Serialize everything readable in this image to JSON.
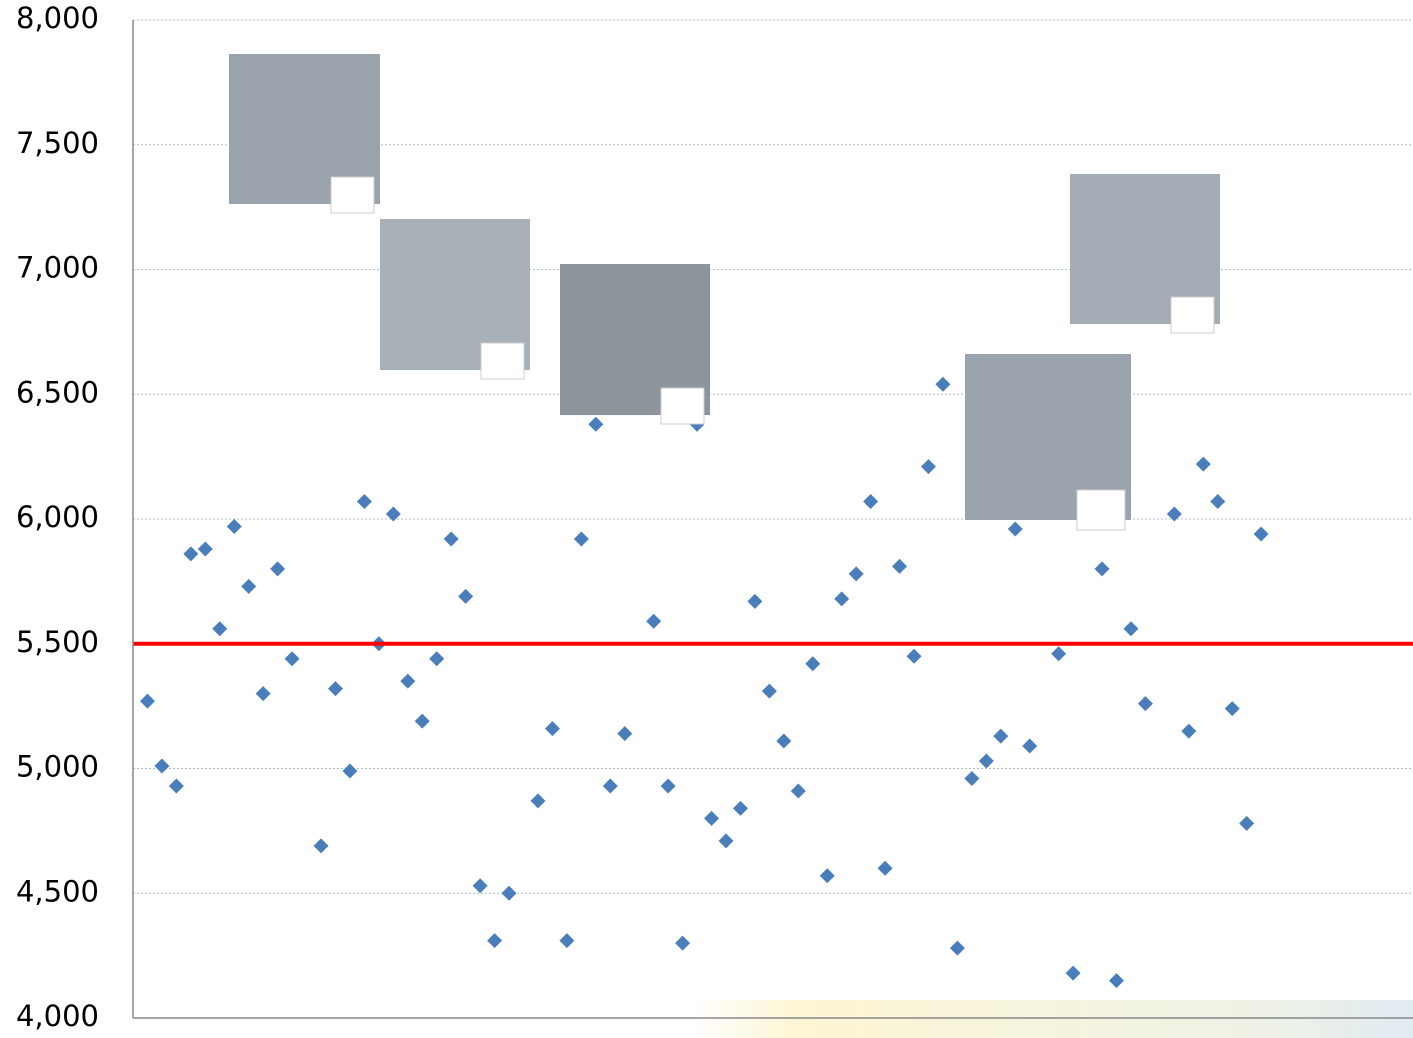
{
  "chart_data": {
    "type": "scatter",
    "xlim": [
      0,
      88.5
    ],
    "ylim": [
      4000,
      8000
    ],
    "yticks": [
      {
        "value": 4000,
        "label": "4,000"
      },
      {
        "value": 4500,
        "label": "4,500"
      },
      {
        "value": 5000,
        "label": "5,000"
      },
      {
        "value": 5500,
        "label": "5,500"
      },
      {
        "value": 6000,
        "label": "6,000"
      },
      {
        "value": 6500,
        "label": "6,500"
      },
      {
        "value": 7000,
        "label": "7,000"
      },
      {
        "value": 7500,
        "label": "7,500"
      },
      {
        "value": 8000,
        "label": "8,000"
      }
    ],
    "grid": true,
    "reference_line": {
      "value": 5500,
      "color": "#ff0000"
    },
    "series": [
      {
        "color": "#4a7ebb",
        "x": [
          1,
          2,
          3,
          4,
          5,
          6,
          7,
          8,
          9,
          10,
          11,
          13,
          14,
          15,
          16,
          17,
          18,
          19,
          20,
          21,
          22,
          23,
          24,
          25,
          26,
          28,
          29,
          30,
          31,
          32,
          33,
          34,
          36,
          37,
          38,
          39,
          40,
          41,
          42,
          43,
          44,
          45,
          46,
          47,
          48,
          49,
          50,
          51,
          52,
          53,
          54,
          55,
          56,
          57,
          58,
          59,
          60,
          61,
          62,
          64,
          65,
          67,
          68,
          69,
          70,
          72,
          73,
          74,
          75,
          76,
          77,
          78
        ],
        "values": [
          5270,
          5010,
          4930,
          5860,
          5880,
          5560,
          5970,
          5730,
          5300,
          5800,
          5440,
          4690,
          5320,
          4990,
          6070,
          5500,
          6020,
          5350,
          5190,
          5440,
          5920,
          5690,
          4530,
          4310,
          4500,
          4870,
          5160,
          4310,
          5920,
          6380,
          4930,
          5140,
          5590,
          4930,
          4300,
          6380,
          4800,
          4710,
          4840,
          5670,
          5310,
          5110,
          4910,
          5420,
          4570,
          5680,
          5780,
          6070,
          4600,
          5810,
          5450,
          6210,
          6540,
          4280,
          4960,
          5030,
          5130,
          5960,
          5090,
          5460,
          4180,
          5800,
          4150,
          5560,
          5260,
          6020,
          5150,
          6220,
          6070,
          5240,
          4780,
          5940
        ]
      }
    ]
  }
}
